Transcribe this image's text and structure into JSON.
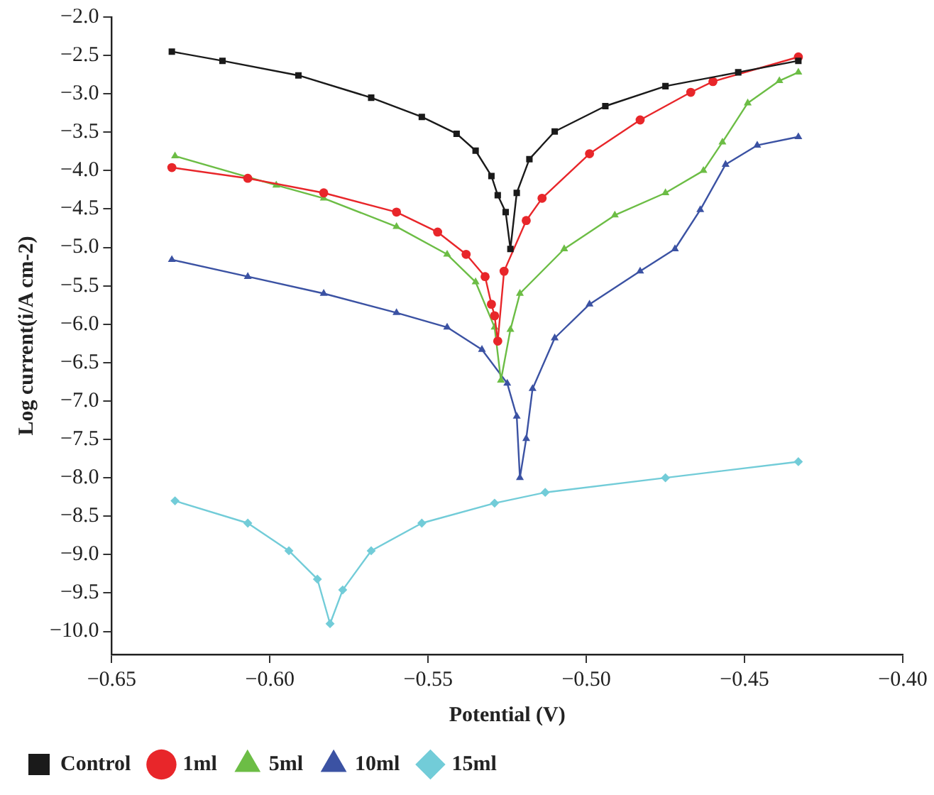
{
  "chart_data": {
    "type": "line",
    "xlabel": "Potential (V)",
    "ylabel": "Log current(i/A cm-2)",
    "xlim": [
      -0.65,
      -0.4
    ],
    "xticks": [
      {
        "value": -0.65,
        "label": "−0.65"
      },
      {
        "value": -0.6,
        "label": "−0.60"
      },
      {
        "value": -0.55,
        "label": "−0.55"
      },
      {
        "value": -0.5,
        "label": "−0.50"
      },
      {
        "value": -0.45,
        "label": "−0.45"
      },
      {
        "value": -0.4,
        "label": "−0.40"
      }
    ],
    "ylim": [
      -10.3,
      -2.0
    ],
    "yticks": [
      {
        "value": -2.0,
        "label": "−2.0"
      },
      {
        "value": -2.5,
        "label": "−2.5"
      },
      {
        "value": -3.0,
        "label": "−3.0"
      },
      {
        "value": -3.5,
        "label": "−3.5"
      },
      {
        "value": -4.0,
        "label": "−4.0"
      },
      {
        "value": -4.5,
        "label": "−4.5"
      },
      {
        "value": -5.0,
        "label": "−5.0"
      },
      {
        "value": -5.5,
        "label": "−5.5"
      },
      {
        "value": -6.0,
        "label": "−6.0"
      },
      {
        "value": -6.5,
        "label": "−6.5"
      },
      {
        "value": -7.0,
        "label": "−7.0"
      },
      {
        "value": -7.5,
        "label": "−7.5"
      },
      {
        "value": -8.0,
        "label": "−8.0"
      },
      {
        "value": -8.5,
        "label": "−8.5"
      },
      {
        "value": -9.0,
        "label": "−9.0"
      },
      {
        "value": -9.5,
        "label": "−9.5"
      },
      {
        "value": -10.0,
        "label": "−10.0"
      }
    ],
    "grid": false,
    "legend": "bottom",
    "series": [
      {
        "name": "Control",
        "color": "#1a1a1a",
        "marker": "square",
        "x": [
          -0.631,
          -0.615,
          -0.591,
          -0.568,
          -0.552,
          -0.541,
          -0.535,
          -0.53,
          -0.528,
          -0.5255,
          -0.524,
          -0.522,
          -0.518,
          -0.51,
          -0.494,
          -0.475,
          -0.452,
          -0.433
        ],
        "values": [
          -2.45,
          -2.57,
          -2.76,
          -3.05,
          -3.3,
          -3.52,
          -3.74,
          -4.07,
          -4.32,
          -4.54,
          -5.02,
          -4.29,
          -3.85,
          -3.49,
          -3.16,
          -2.9,
          -2.72,
          -2.57
        ]
      },
      {
        "name": "1ml",
        "color": "#e8262a",
        "marker": "circle",
        "x": [
          -0.631,
          -0.607,
          -0.583,
          -0.56,
          -0.547,
          -0.538,
          -0.532,
          -0.53,
          -0.529,
          -0.528,
          -0.526,
          -0.519,
          -0.514,
          -0.499,
          -0.483,
          -0.467,
          -0.46,
          -0.433
        ],
        "values": [
          -3.96,
          -4.1,
          -4.29,
          -4.54,
          -4.8,
          -5.09,
          -5.38,
          -5.74,
          -5.89,
          -6.22,
          -5.31,
          -4.65,
          -4.36,
          -3.78,
          -3.34,
          -2.98,
          -2.84,
          -2.52
        ]
      },
      {
        "name": "5ml",
        "color": "#6cbd45",
        "marker": "triangle",
        "x": [
          -0.63,
          -0.598,
          -0.583,
          -0.56,
          -0.544,
          -0.535,
          -0.529,
          -0.527,
          -0.524,
          -0.521,
          -0.507,
          -0.491,
          -0.475,
          -0.463,
          -0.457,
          -0.449,
          -0.439,
          -0.433
        ],
        "values": [
          -3.81,
          -4.19,
          -4.36,
          -4.73,
          -5.09,
          -5.45,
          -6.04,
          -6.73,
          -6.07,
          -5.6,
          -5.02,
          -4.58,
          -4.29,
          -4.0,
          -3.63,
          -3.12,
          -2.83,
          -2.72
        ]
      },
      {
        "name": "10ml",
        "color": "#3b52a3",
        "marker": "triangle",
        "x": [
          -0.631,
          -0.607,
          -0.583,
          -0.56,
          -0.544,
          -0.533,
          -0.525,
          -0.522,
          -0.521,
          -0.519,
          -0.517,
          -0.51,
          -0.499,
          -0.483,
          -0.472,
          -0.464,
          -0.456,
          -0.446,
          -0.433
        ],
        "values": [
          -5.16,
          -5.38,
          -5.6,
          -5.85,
          -6.04,
          -6.33,
          -6.77,
          -7.2,
          -8.0,
          -7.49,
          -6.84,
          -6.18,
          -5.74,
          -5.31,
          -5.02,
          -4.51,
          -3.92,
          -3.67,
          -3.56
        ]
      },
      {
        "name": "15ml",
        "color": "#72ccd8",
        "marker": "diamond",
        "x": [
          -0.63,
          -0.607,
          -0.594,
          -0.585,
          -0.581,
          -0.577,
          -0.568,
          -0.552,
          -0.529,
          -0.513,
          -0.475,
          -0.433
        ],
        "values": [
          -8.3,
          -8.59,
          -8.95,
          -9.32,
          -9.9,
          -9.46,
          -8.95,
          -8.59,
          -8.33,
          -8.19,
          -8.0,
          -7.79
        ]
      }
    ]
  }
}
